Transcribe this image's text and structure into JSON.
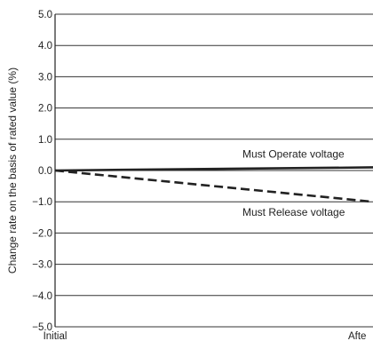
{
  "chart_data": {
    "type": "line",
    "title": "",
    "xlabel": "",
    "ylabel": "Change rate on the basis of rated value (%)",
    "ylim": [
      -5.0,
      5.0
    ],
    "yticks": [
      "5.0",
      "4.0",
      "3.0",
      "2.0",
      "1.0",
      "0.0",
      "−1.0",
      "−2.0",
      "−3.0",
      "−4.0",
      "−5.0"
    ],
    "yticks_values": [
      5,
      4,
      3,
      2,
      1,
      0,
      -1,
      -2,
      -3,
      -4,
      -5
    ],
    "categories": [
      "Initial",
      "Afte"
    ],
    "grid": "horizontal",
    "series": [
      {
        "name": "Must Operate voltage",
        "style": "solid",
        "color": "#222222",
        "values": [
          0.0,
          0.1
        ]
      },
      {
        "name": "Must Release voltage",
        "style": "dashed",
        "color": "#222222",
        "values": [
          0.0,
          -1.0
        ]
      }
    ]
  }
}
